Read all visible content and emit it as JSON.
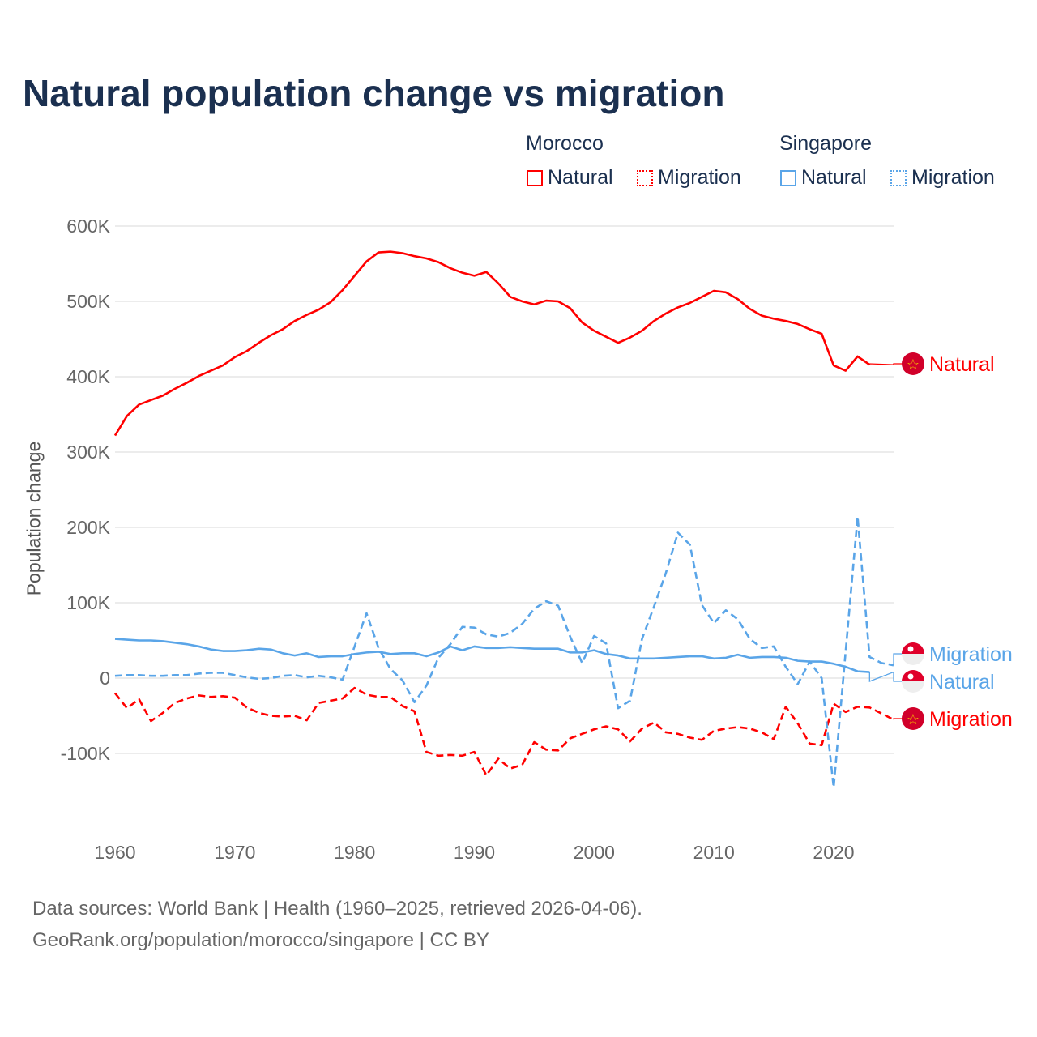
{
  "chart_data": {
    "type": "line",
    "title": "Natural population change vs migration",
    "ylabel": "Population change",
    "xlabel": "",
    "xlim": [
      1960,
      2025
    ],
    "ylim": [
      -200000,
      600000
    ],
    "x_ticks": [
      "1960",
      "1970",
      "1980",
      "1990",
      "2000",
      "2010",
      "2020"
    ],
    "y_ticks": [
      {
        "value": 600000,
        "label": "600K"
      },
      {
        "value": 500000,
        "label": "500K"
      },
      {
        "value": 400000,
        "label": "400K"
      },
      {
        "value": 300000,
        "label": "300K"
      },
      {
        "value": 200000,
        "label": "200K"
      },
      {
        "value": 100000,
        "label": "100K"
      },
      {
        "value": 0,
        "label": "0"
      },
      {
        "value": -100000,
        "label": "-100K"
      }
    ],
    "grid": true,
    "legend": {
      "placement": "top-right",
      "groups": [
        {
          "name": "Morocco",
          "items": [
            "Natural",
            "Migration"
          ]
        },
        {
          "name": "Singapore",
          "items": [
            "Natural",
            "Migration"
          ]
        }
      ]
    },
    "series": [
      {
        "name": "Morocco Natural",
        "country": "Morocco",
        "label": "Natural",
        "color": "#ff0000",
        "dash": false,
        "start": 1960,
        "values": [
          322,
          348,
          363,
          369,
          375,
          384,
          392,
          401,
          408,
          415,
          426,
          434,
          445,
          455,
          463,
          474,
          482,
          489,
          499,
          515,
          534,
          553,
          565,
          566,
          564,
          560,
          557,
          552,
          544,
          538,
          534,
          539,
          524,
          506,
          500,
          496,
          501,
          500,
          491,
          472,
          461,
          453,
          445,
          452,
          461,
          474,
          484,
          492,
          498,
          506,
          514,
          512,
          503,
          490,
          481,
          477,
          474,
          470,
          463,
          457,
          415,
          408,
          427,
          416
        ]
      },
      {
        "name": "Morocco Migration",
        "country": "Morocco",
        "label": "Migration",
        "color": "#ff0000",
        "dash": true,
        "start": 1960,
        "values": [
          -20,
          -40,
          -28,
          -57,
          -46,
          -33,
          -27,
          -23,
          -25,
          -24,
          -26,
          -39,
          -46,
          -50,
          -51,
          -50,
          -56,
          -33,
          -30,
          -27,
          -13,
          -22,
          -25,
          -25,
          -37,
          -44,
          -98,
          -103,
          -102,
          -103,
          -98,
          -129,
          -107,
          -120,
          -115,
          -85,
          -95,
          -96,
          -80,
          -74,
          -68,
          -64,
          -68,
          -84,
          -67,
          -59,
          -72,
          -74,
          -79,
          -82,
          -70,
          -67,
          -65,
          -67,
          -72,
          -81,
          -38,
          -60,
          -87,
          -89,
          -34,
          -45,
          -38,
          -39,
          -47,
          -55
        ]
      },
      {
        "name": "Singapore Natural",
        "country": "Singapore",
        "label": "Natural",
        "color": "#5aa5e8",
        "dash": false,
        "start": 1960,
        "values": [
          52,
          51,
          50,
          50,
          49,
          47,
          45,
          42,
          38,
          36,
          36,
          37,
          39,
          38,
          33,
          30,
          33,
          28,
          29,
          29,
          32,
          34,
          35,
          32,
          33,
          33,
          29,
          34,
          42,
          37,
          42,
          40,
          40,
          41,
          40,
          39,
          39,
          39,
          34,
          34,
          37,
          32,
          30,
          26,
          26,
          26,
          27,
          28,
          29,
          29,
          26,
          27,
          31,
          27,
          28,
          28,
          27,
          23,
          22,
          22,
          19,
          15,
          9,
          8
        ]
      },
      {
        "name": "Singapore Migration",
        "country": "Singapore",
        "label": "Migration",
        "color": "#5aa5e8",
        "dash": true,
        "start": 1960,
        "values": [
          3,
          4,
          4,
          3,
          3,
          4,
          4,
          6,
          7,
          7,
          4,
          1,
          -1,
          0,
          3,
          4,
          1,
          3,
          1,
          -2,
          42,
          86,
          40,
          12,
          -3,
          -32,
          -10,
          27,
          45,
          68,
          67,
          58,
          55,
          60,
          72,
          92,
          102,
          96,
          55,
          20,
          56,
          46,
          -40,
          -30,
          52,
          95,
          140,
          193,
          177,
          97,
          73,
          90,
          78,
          52,
          40,
          42,
          15,
          -8,
          22,
          0,
          -145,
          35,
          214,
          28,
          20,
          17
        ]
      }
    ],
    "units": "thousands"
  },
  "footer": {
    "line1": "Data sources: World Bank | Health (1960–2025, retrieved 2026-04-06).",
    "line2": "GeoRank.org/population/morocco/singapore | CC BY"
  }
}
